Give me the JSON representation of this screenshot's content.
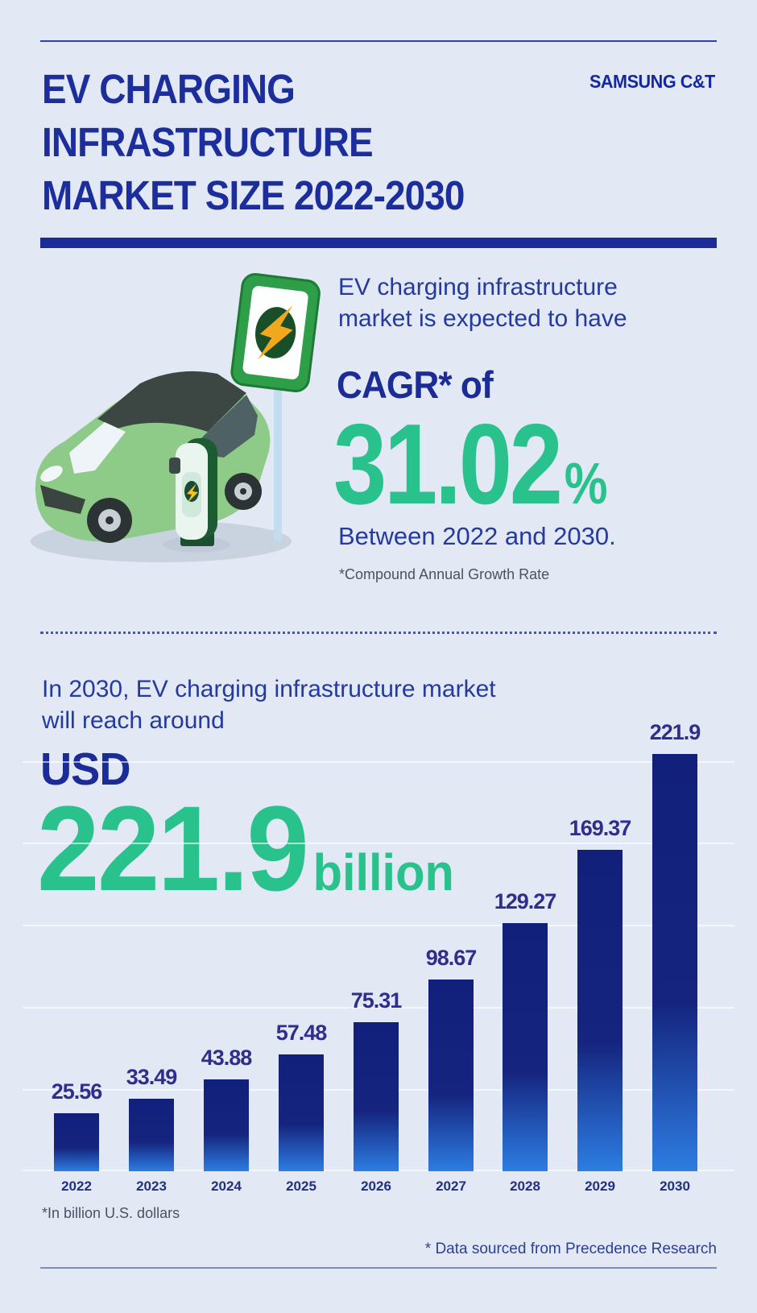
{
  "header": {
    "brand": "SAMSUNG C&T",
    "title_lines": [
      "EV CHARGING",
      "INFRASTRUCTURE",
      "MARKET SIZE 2022-2030"
    ]
  },
  "hero": {
    "intro_line1": "EV charging infrastructure",
    "intro_line2": "market is expected to have",
    "cagr_label": "CAGR* of",
    "cagr_value": "31.02",
    "cagr_percent_sign": "%",
    "range_text": "Between 2022 and 2030.",
    "cagr_footnote": "*Compound Annual Growth Rate"
  },
  "market_section": {
    "intro_line1": "In 2030, EV charging infrastructure market",
    "intro_line2": "will reach around",
    "currency": "USD",
    "big_value": "221.9",
    "big_unit": "billion",
    "footnote": "*In billion U.S. dollars",
    "source": "* Data sourced from Precedence Research"
  },
  "chart_data": {
    "type": "bar",
    "title": "EV charging infrastructure market size 2022-2030",
    "categories": [
      "2022",
      "2023",
      "2024",
      "2025",
      "2026",
      "2027",
      "2028",
      "2029",
      "2030"
    ],
    "values": [
      25.56,
      33.49,
      43.88,
      57.48,
      75.31,
      98.67,
      129.27,
      169.37,
      221.9
    ],
    "value_labels": [
      "25.56",
      "33.49",
      "43.88",
      "57.48",
      "75.31",
      "98.67",
      "129.27",
      "169.37",
      "221.9"
    ],
    "unit": "billion U.S. dollars",
    "xlabel": "",
    "ylabel": "",
    "ylim": [
      0,
      240
    ],
    "grid": true,
    "legend": false
  },
  "colors": {
    "background": "#e2e8f4",
    "navy": "#1b2c96",
    "title_navy": "#1c2e9c",
    "accent_green": "#2ac28c",
    "bar_gradient_top": "#11207b",
    "bar_gradient_bottom": "#2d7de2",
    "footnote_gray": "#4b5263",
    "brand_blue": "#1428a0"
  }
}
